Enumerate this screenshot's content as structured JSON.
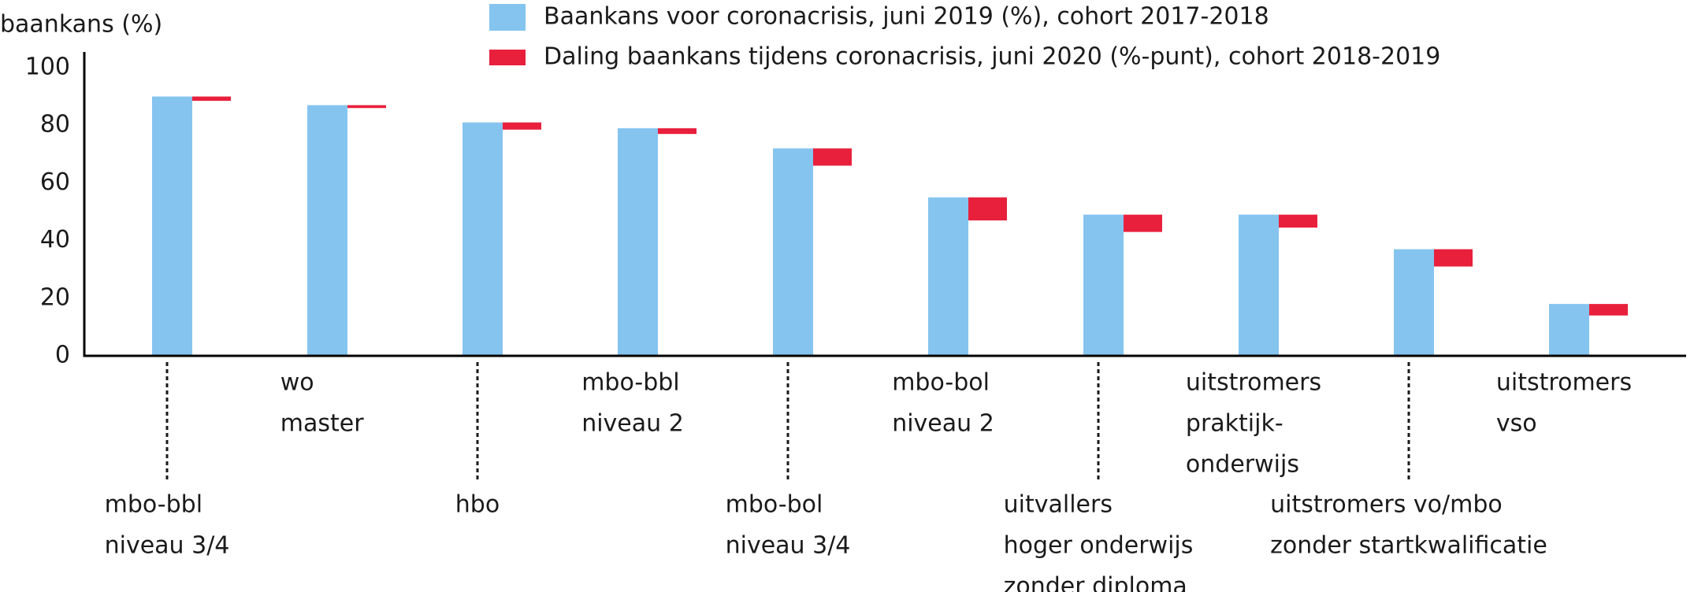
{
  "chart_data": {
    "type": "bar",
    "y_label": "baankans (%)",
    "categories": [
      [
        "mbo-bbl",
        "niveau 3/4"
      ],
      [
        "wo",
        "master"
      ],
      [
        "hbo"
      ],
      [
        "mbo-bbl",
        "niveau 2"
      ],
      [
        "mbo-bol",
        "niveau 3/4"
      ],
      [
        "mbo-bol",
        "niveau 2"
      ],
      [
        "uitvallers",
        "hoger onderwijs",
        "zonder diploma"
      ],
      [
        "uitstromers",
        "praktijk-",
        "onderwijs"
      ],
      [
        "uitstromers vo/mbo",
        "zonder startkwalificatie"
      ],
      [
        "uitstromers",
        "vso"
      ]
    ],
    "series": [
      {
        "name": "Baankans voor coronacrisis, juni 2019 (%), cohort 2017-2018",
        "color": "#85c4ef",
        "values": [
          90,
          87,
          81,
          79,
          72,
          55,
          49,
          49,
          37,
          18
        ]
      },
      {
        "name": "Daling baankans tijdens coronacrisis, juni 2020 (%-punt), cohort 2018-2019",
        "color": "#e8203c",
        "values": [
          1.5,
          1,
          2.5,
          2,
          6,
          8,
          6,
          4.5,
          6,
          4
        ]
      }
    ],
    "ylim": [
      0,
      100
    ],
    "yticks": [
      0,
      20,
      40,
      60,
      80,
      100
    ],
    "grid": false
  }
}
